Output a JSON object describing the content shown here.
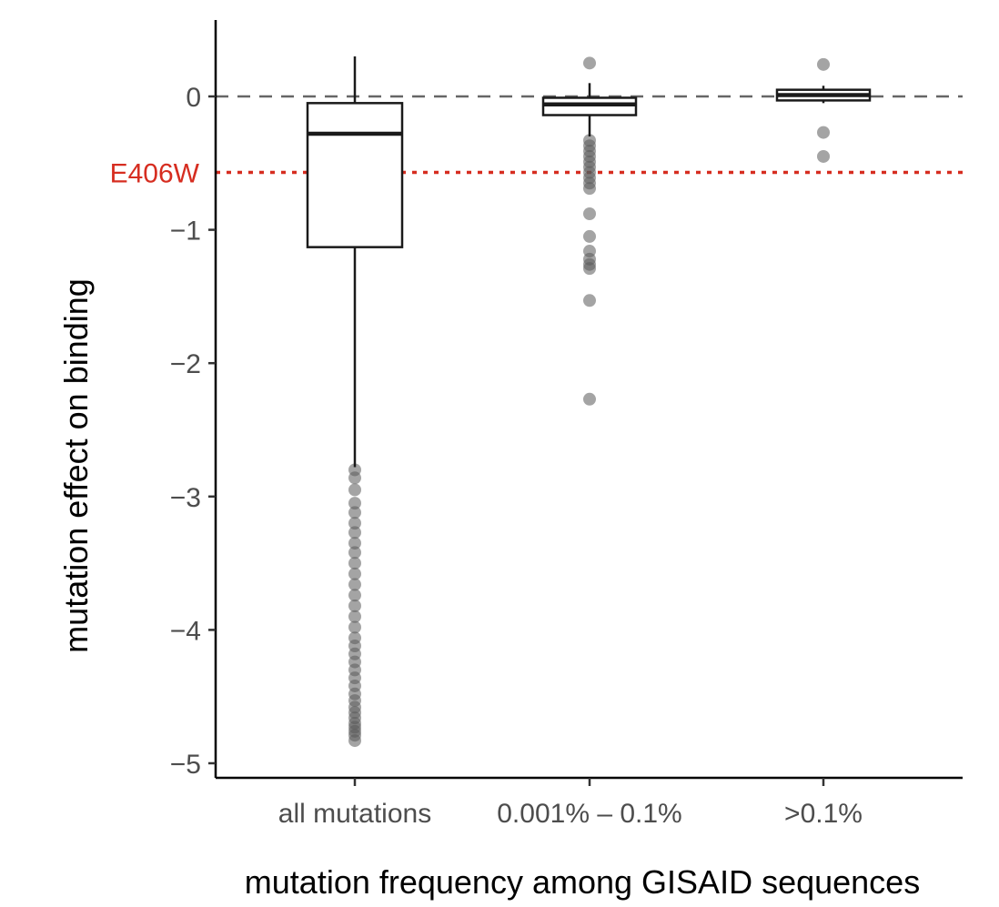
{
  "chart_data": {
    "type": "boxplot",
    "title": "",
    "xlabel": "mutation frequency among GISAID sequences",
    "ylabel": "mutation effect on binding",
    "categories": [
      "all mutations",
      "0.001% – 0.1%",
      ">0.1%"
    ],
    "ylim": [
      -5.1,
      0.58
    ],
    "y_ticks": [
      0,
      -1,
      -2,
      -3,
      -4,
      -5
    ],
    "y_tick_labels": [
      "0",
      "−1",
      "−2",
      "−3",
      "−4",
      "−5"
    ],
    "grid": false,
    "boxes": [
      {
        "category": "all mutations",
        "whisker_high": 0.3,
        "q3": -0.05,
        "median": -0.28,
        "q1": -1.13,
        "whisker_low": -2.78,
        "outliers": [
          -2.8,
          -2.86,
          -2.95,
          -3.05,
          -3.12,
          -3.2,
          -3.27,
          -3.35,
          -3.42,
          -3.5,
          -3.58,
          -3.66,
          -3.74,
          -3.82,
          -3.9,
          -3.98,
          -4.06,
          -4.12,
          -4.18,
          -4.24,
          -4.3,
          -4.36,
          -4.42,
          -4.48,
          -4.53,
          -4.58,
          -4.62,
          -4.66,
          -4.7,
          -4.73,
          -4.76,
          -4.79,
          -4.83
        ]
      },
      {
        "category": "0.001% – 0.1%",
        "whisker_high": 0.1,
        "q3": -0.01,
        "median": -0.06,
        "q1": -0.14,
        "whisker_low": -0.3,
        "outliers": [
          0.25,
          -0.33,
          -0.37,
          -0.41,
          -0.45,
          -0.49,
          -0.53,
          -0.57,
          -0.61,
          -0.65,
          -0.69,
          -0.88,
          -1.05,
          -1.16,
          -1.22,
          -1.26,
          -1.29,
          -1.53,
          -2.27
        ]
      },
      {
        "category": ">0.1%",
        "whisker_high": 0.08,
        "q3": 0.05,
        "median": 0.01,
        "q1": -0.03,
        "whisker_low": -0.05,
        "outliers": [
          0.24,
          -0.27,
          -0.45
        ]
      }
    ],
    "reference_lines": [
      {
        "y": 0,
        "style": "dashed",
        "color": "#666666",
        "label": ""
      },
      {
        "y": -0.57,
        "style": "dotted",
        "color": "#d62d20",
        "label": "E406W"
      }
    ]
  }
}
